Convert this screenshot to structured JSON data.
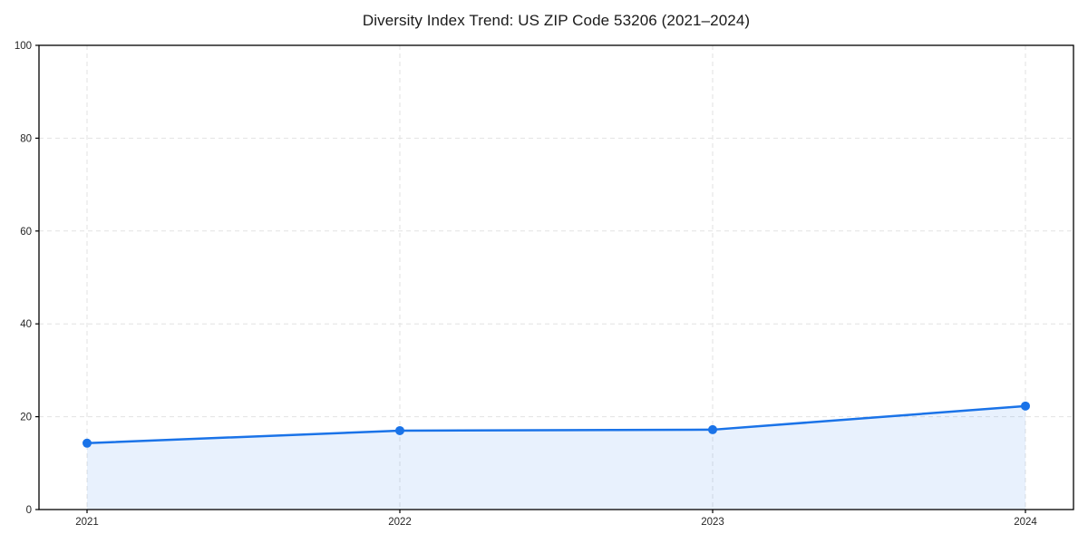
{
  "figure": {
    "background": "#ffffff"
  },
  "chart_data": {
    "type": "line",
    "title": "Diversity Index Trend: US ZIP Code 53206 (2021–2024)",
    "categories": [
      "2021",
      "2022",
      "2023",
      "2024"
    ],
    "series": [
      {
        "name": "Diversity Index",
        "values": [
          14.3,
          17.0,
          17.2,
          22.3
        ]
      }
    ],
    "xlabel": "",
    "ylabel": "",
    "ylim": [
      0,
      100
    ],
    "yticks": [
      0,
      20,
      40,
      60,
      80,
      100
    ],
    "grid": true,
    "grid_style": "dashed",
    "legend": false,
    "marker": "circle",
    "area_fill": true,
    "colors": {
      "line": "#1a73e8",
      "marker": "#1a73e8",
      "area": "rgba(26,115,232,0.10)",
      "grid": "#e2e2e2",
      "axis": "#000000",
      "tick_text": "#262626",
      "title_text": "#1a1a1a"
    }
  }
}
